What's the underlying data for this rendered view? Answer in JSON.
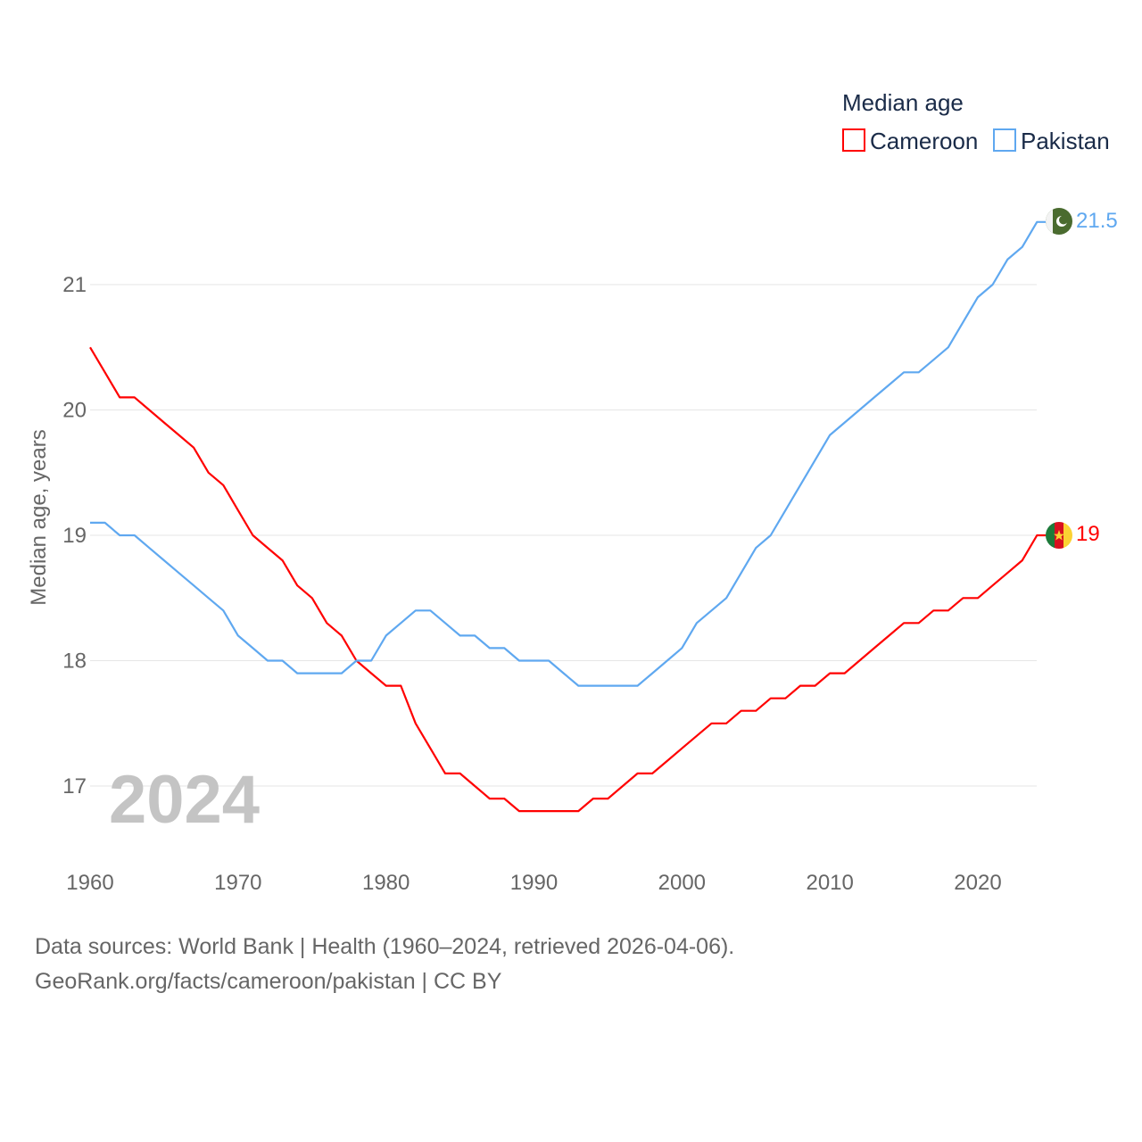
{
  "chart_data": {
    "type": "line",
    "title": "Median age",
    "ylabel": "Median age, years",
    "xlabel": "",
    "year_label": "2024",
    "xlim": [
      1960,
      2024
    ],
    "ylim": [
      16.5,
      21.6
    ],
    "x_ticks": [
      "1960",
      "1970",
      "1980",
      "1990",
      "2000",
      "2010",
      "2020"
    ],
    "y_ticks": [
      "17",
      "18",
      "19",
      "20",
      "21"
    ],
    "grid": true,
    "legend_position": "top-right",
    "x": [
      1960,
      1961,
      1962,
      1963,
      1964,
      1965,
      1966,
      1967,
      1968,
      1969,
      1970,
      1971,
      1972,
      1973,
      1974,
      1975,
      1976,
      1977,
      1978,
      1979,
      1980,
      1981,
      1982,
      1983,
      1984,
      1985,
      1986,
      1987,
      1988,
      1989,
      1990,
      1991,
      1992,
      1993,
      1994,
      1995,
      1996,
      1997,
      1998,
      1999,
      2000,
      2001,
      2002,
      2003,
      2004,
      2005,
      2006,
      2007,
      2008,
      2009,
      2010,
      2011,
      2012,
      2013,
      2014,
      2015,
      2016,
      2017,
      2018,
      2019,
      2020,
      2021,
      2022,
      2023,
      2024
    ],
    "series": [
      {
        "name": "Cameroon",
        "color": "#ff0000",
        "end_label": "19",
        "values": [
          20.5,
          20.3,
          20.1,
          20.1,
          20.0,
          19.9,
          19.8,
          19.7,
          19.5,
          19.4,
          19.2,
          19.0,
          18.9,
          18.8,
          18.6,
          18.5,
          18.3,
          18.2,
          18.0,
          17.9,
          17.8,
          17.8,
          17.5,
          17.3,
          17.1,
          17.1,
          17.0,
          16.9,
          16.9,
          16.8,
          16.8,
          16.8,
          16.8,
          16.8,
          16.9,
          16.9,
          17.0,
          17.1,
          17.1,
          17.2,
          17.3,
          17.4,
          17.5,
          17.5,
          17.6,
          17.6,
          17.7,
          17.7,
          17.8,
          17.8,
          17.9,
          17.9,
          18.0,
          18.1,
          18.2,
          18.3,
          18.3,
          18.4,
          18.4,
          18.5,
          18.5,
          18.6,
          18.7,
          18.8,
          19.0
        ]
      },
      {
        "name": "Pakistan",
        "color": "#5fa8f0",
        "end_label": "21.5",
        "values": [
          19.1,
          19.1,
          19.0,
          19.0,
          18.9,
          18.8,
          18.7,
          18.6,
          18.5,
          18.4,
          18.2,
          18.1,
          18.0,
          18.0,
          17.9,
          17.9,
          17.9,
          17.9,
          18.0,
          18.0,
          18.2,
          18.3,
          18.4,
          18.4,
          18.3,
          18.2,
          18.2,
          18.1,
          18.1,
          18.0,
          18.0,
          18.0,
          17.9,
          17.8,
          17.8,
          17.8,
          17.8,
          17.8,
          17.9,
          18.0,
          18.1,
          18.3,
          18.4,
          18.5,
          18.7,
          18.9,
          19.0,
          19.2,
          19.4,
          19.6,
          19.8,
          19.9,
          20.0,
          20.1,
          20.2,
          20.3,
          20.3,
          20.4,
          20.5,
          20.7,
          20.9,
          21.0,
          21.2,
          21.3,
          21.5
        ]
      }
    ]
  },
  "footer": {
    "line1": "Data sources: World Bank | Health (1960–2024, retrieved 2026-04-06).",
    "line2": "GeoRank.org/facts/cameroon/pakistan | CC BY"
  }
}
